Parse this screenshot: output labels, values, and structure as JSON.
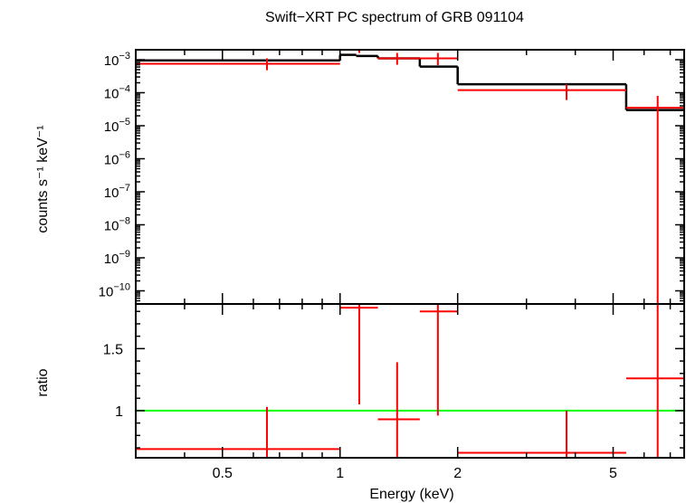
{
  "chart_data": {
    "title": "Swift−XRT PC spectrum of GRB 091104",
    "xlabel": "Energy (keV)",
    "xscale": "log",
    "xlim": [
      0.3,
      7.6
    ],
    "x_ticks": [
      {
        "value": 0.5,
        "label": "0.5"
      },
      {
        "value": 1,
        "label": "1"
      },
      {
        "value": 2,
        "label": "2"
      },
      {
        "value": 5,
        "label": "5"
      }
    ],
    "panels": [
      {
        "type": "line",
        "ylabel": "counts s⁻¹ keV⁻¹",
        "yscale": "log",
        "ylim": [
          4e-11,
          0.002
        ],
        "y_ticks": [
          {
            "value": 0.001,
            "base": "10",
            "exp": "−3"
          },
          {
            "value": 0.0001,
            "base": "10",
            "exp": "−4"
          },
          {
            "value": 1e-05,
            "base": "10",
            "exp": "−5"
          },
          {
            "value": 1e-06,
            "base": "10",
            "exp": "−6"
          },
          {
            "value": 1e-07,
            "base": "10",
            "exp": "−7"
          },
          {
            "value": 1e-08,
            "base": "10",
            "exp": "−8"
          },
          {
            "value": 1e-09,
            "base": "10",
            "exp": "−9"
          },
          {
            "value": 1e-10,
            "base": "10",
            "exp": "−10"
          }
        ],
        "data": {
          "color": "#ff0000",
          "points": [
            {
              "x": 0.65,
              "xlo": 0.3,
              "xhi": 1.0,
              "y": 0.00075,
              "ylo": 0.00048,
              "yhi": 0.0011
            },
            {
              "x": 1.12,
              "xlo": 1.0,
              "xhi": 1.25,
              "y": 0.0025,
              "ylo": 0.0016,
              "yhi": 0.0035
            },
            {
              "x": 1.4,
              "xlo": 1.25,
              "xhi": 1.6,
              "y": 0.0011,
              "ylo": 0.0007,
              "yhi": 0.0016
            },
            {
              "x": 1.78,
              "xlo": 1.6,
              "xhi": 2.0,
              "y": 0.0011,
              "ylo": 0.00068,
              "yhi": 0.0016
            },
            {
              "x": 3.8,
              "xlo": 2.0,
              "xhi": 5.4,
              "y": 0.00012,
              "ylo": 6e-05,
              "yhi": 0.00018
            },
            {
              "x": 6.5,
              "xlo": 5.4,
              "xhi": 7.6,
              "y": 3.5e-05,
              "ylo": 4e-11,
              "yhi": 8e-05
            }
          ]
        },
        "model": {
          "color": "#000000",
          "steps": [
            {
              "xlo": 0.3,
              "xhi": 1.0,
              "y": 0.00095
            },
            {
              "xlo": 1.0,
              "xhi": 1.1,
              "y": 0.0014
            },
            {
              "xlo": 1.1,
              "xhi": 1.25,
              "y": 0.0013
            },
            {
              "xlo": 1.25,
              "xhi": 1.6,
              "y": 0.0011
            },
            {
              "xlo": 1.6,
              "xhi": 2.0,
              "y": 0.00062
            },
            {
              "xlo": 2.0,
              "xhi": 5.4,
              "y": 0.00018
            },
            {
              "xlo": 5.4,
              "xhi": 7.6,
              "y": 3e-05
            }
          ]
        }
      },
      {
        "type": "scatter",
        "ylabel": "ratio",
        "yscale": "linear",
        "ylim": [
          0.62,
          1.86
        ],
        "y_ticks": [
          {
            "value": 1,
            "label": "1"
          },
          {
            "value": 1.5,
            "label": "1.5"
          }
        ],
        "reference_line": {
          "y": 1,
          "color": "#00ff00"
        },
        "data": {
          "color": "#ff0000",
          "points": [
            {
              "x": 0.65,
              "xlo": 0.3,
              "xhi": 1.0,
              "y": 0.69,
              "ylo": 0.6,
              "yhi": 1.03
            },
            {
              "x": 1.12,
              "xlo": 1.0,
              "xhi": 1.25,
              "y": 1.83,
              "ylo": 1.05,
              "yhi": 1.86
            },
            {
              "x": 1.4,
              "xlo": 1.25,
              "xhi": 1.6,
              "y": 0.93,
              "ylo": 0.6,
              "yhi": 1.39
            },
            {
              "x": 1.78,
              "xlo": 1.6,
              "xhi": 2.0,
              "y": 1.8,
              "ylo": 0.96,
              "yhi": 1.86
            },
            {
              "x": 3.8,
              "xlo": 2.0,
              "xhi": 5.4,
              "y": 0.66,
              "ylo": 0.6,
              "yhi": 1.0
            },
            {
              "x": 6.5,
              "xlo": 5.4,
              "xhi": 7.6,
              "y": 1.26,
              "ylo": 0.6,
              "yhi": 1.86
            }
          ]
        }
      }
    ]
  }
}
